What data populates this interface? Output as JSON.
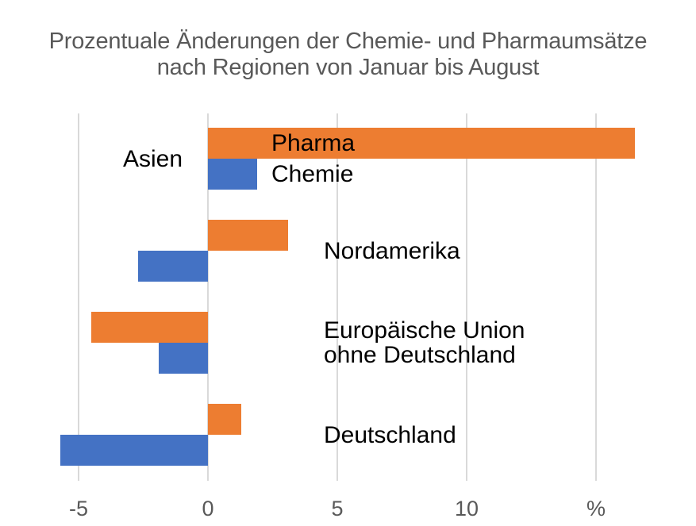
{
  "title": {
    "line1": "Prozentuale Änderungen der Chemie- und Pharmaumsätze",
    "line2": "nach Regionen von Januar bis August"
  },
  "chart_data": {
    "type": "bar",
    "orientation": "horizontal",
    "title": "Prozentuale Änderungen der Chemie- und Pharmaumsätze nach Regionen von Januar bis August",
    "unit": "%",
    "categories": [
      {
        "name": "Asien",
        "lines": [
          "Asien"
        ]
      },
      {
        "name": "Nordamerika",
        "lines": [
          "Nordamerika"
        ]
      },
      {
        "name": "Europäische Union ohne Deutschland",
        "lines": [
          "Europäische Union",
          "ohne Deutschland"
        ]
      },
      {
        "name": "Deutschland",
        "lines": [
          "Deutschland"
        ]
      }
    ],
    "series": [
      {
        "name": "Pharma",
        "color": "#ED7D31",
        "values": [
          16.5,
          3.1,
          -4.5,
          1.3
        ]
      },
      {
        "name": "Chemie",
        "color": "#4472C4",
        "values": [
          1.9,
          -2.7,
          -1.9,
          -5.7
        ]
      }
    ],
    "x_axis": {
      "ticks": [
        -5,
        0,
        5,
        10,
        15
      ],
      "tick_labels": [
        "-5",
        "0",
        "5",
        "10",
        "%"
      ],
      "range": [
        -6.5,
        17.5
      ]
    },
    "grid": true,
    "legend_position": "inline-first-group",
    "colors": {
      "grid": "#D9D9D9",
      "axis_text": "#595959",
      "label_text": "#000000",
      "title_text": "#595959",
      "background": "#FFFFFF"
    }
  }
}
